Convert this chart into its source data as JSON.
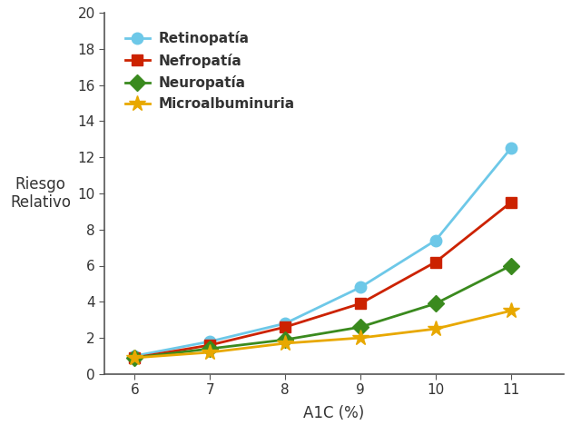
{
  "x": [
    6,
    7,
    8,
    9,
    10,
    11
  ],
  "retinopatia": [
    1.0,
    1.8,
    2.8,
    4.8,
    7.4,
    12.5
  ],
  "nefropatia": [
    0.9,
    1.6,
    2.6,
    3.9,
    6.2,
    9.5
  ],
  "neuropatia": [
    0.9,
    1.4,
    1.9,
    2.6,
    3.9,
    6.0
  ],
  "microalbuminuria": [
    0.9,
    1.2,
    1.7,
    2.0,
    2.5,
    3.5
  ],
  "colors": {
    "retinopatia": "#6DC8E8",
    "nefropatia": "#CC2200",
    "neuropatia": "#3A8A1E",
    "microalbuminuria": "#E8A800"
  },
  "labels": {
    "retinopatia": "Retinopatía",
    "nefropatia": "Nefropatía",
    "neuropatia": "Neuropatía",
    "microalbuminuria": "Microalbuminuria"
  },
  "markers": {
    "retinopatia": "o",
    "nefropatia": "s",
    "neuropatia": "D",
    "microalbuminuria": "*"
  },
  "markersizes": {
    "retinopatia": 9,
    "nefropatia": 9,
    "neuropatia": 9,
    "microalbuminuria": 13
  },
  "xlabel": "A1C (%)",
  "ylabel_line1": "Riesgo",
  "ylabel_line2": "Relativo",
  "xlim": [
    5.6,
    11.7
  ],
  "ylim": [
    0,
    20
  ],
  "yticks": [
    0,
    2,
    4,
    6,
    8,
    10,
    12,
    14,
    16,
    18,
    20
  ],
  "xticks": [
    6,
    7,
    8,
    9,
    10,
    11
  ],
  "background_color": "#ffffff",
  "linewidth": 2.0,
  "text_color": "#333333"
}
